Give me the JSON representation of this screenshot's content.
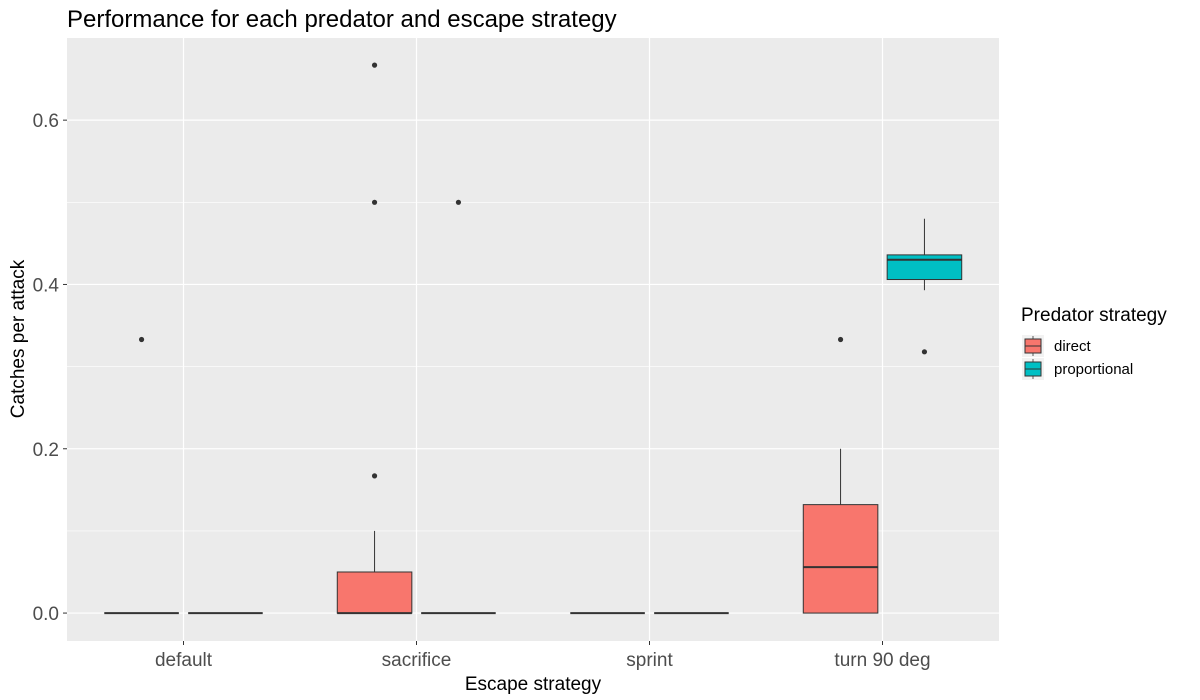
{
  "chart_data": {
    "type": "boxplot",
    "title": "Performance for each predator and escape strategy",
    "xlabel": "Escape strategy",
    "ylabel": "Catches per attack",
    "categories": [
      "default",
      "sacrifice",
      "sprint",
      "turn 90 deg"
    ],
    "y_ticks": [
      {
        "value": 0.0,
        "label": "0.0"
      },
      {
        "value": 0.2,
        "label": "0.2"
      },
      {
        "value": 0.4,
        "label": "0.4"
      },
      {
        "value": 0.6,
        "label": "0.6"
      }
    ],
    "ylim": [
      -0.034,
      0.7
    ],
    "grid": true,
    "legend": {
      "title": "Predator strategy",
      "position": "right"
    },
    "series": [
      {
        "name": "direct",
        "color": "#F8766D",
        "boxes": [
          {
            "category": "default",
            "min": 0,
            "q1": 0,
            "median": 0,
            "q3": 0,
            "max": 0,
            "outliers": [
              0.333
            ]
          },
          {
            "category": "sacrifice",
            "min": 0,
            "q1": 0,
            "median": 0,
            "q3": 0.05,
            "max": 0.1,
            "outliers": [
              0.167,
              0.5,
              0.667
            ]
          },
          {
            "category": "sprint",
            "min": 0,
            "q1": 0,
            "median": 0,
            "q3": 0,
            "max": 0,
            "outliers": []
          },
          {
            "category": "turn 90 deg",
            "min": 0,
            "q1": 0,
            "median": 0.056,
            "q3": 0.132,
            "max": 0.2,
            "outliers": [
              0.333
            ]
          }
        ]
      },
      {
        "name": "proportional",
        "color": "#00BFC4",
        "boxes": [
          {
            "category": "default",
            "min": 0,
            "q1": 0,
            "median": 0,
            "q3": 0,
            "max": 0,
            "outliers": []
          },
          {
            "category": "sacrifice",
            "min": 0,
            "q1": 0,
            "median": 0,
            "q3": 0,
            "max": 0,
            "outliers": [
              0.5
            ]
          },
          {
            "category": "sprint",
            "min": 0,
            "q1": 0,
            "median": 0,
            "q3": 0,
            "max": 0,
            "outliers": []
          },
          {
            "category": "turn 90 deg",
            "min": 0.393,
            "q1": 0.406,
            "median": 0.43,
            "q3": 0.436,
            "max": 0.48,
            "outliers": [
              0.318
            ]
          }
        ]
      }
    ]
  }
}
